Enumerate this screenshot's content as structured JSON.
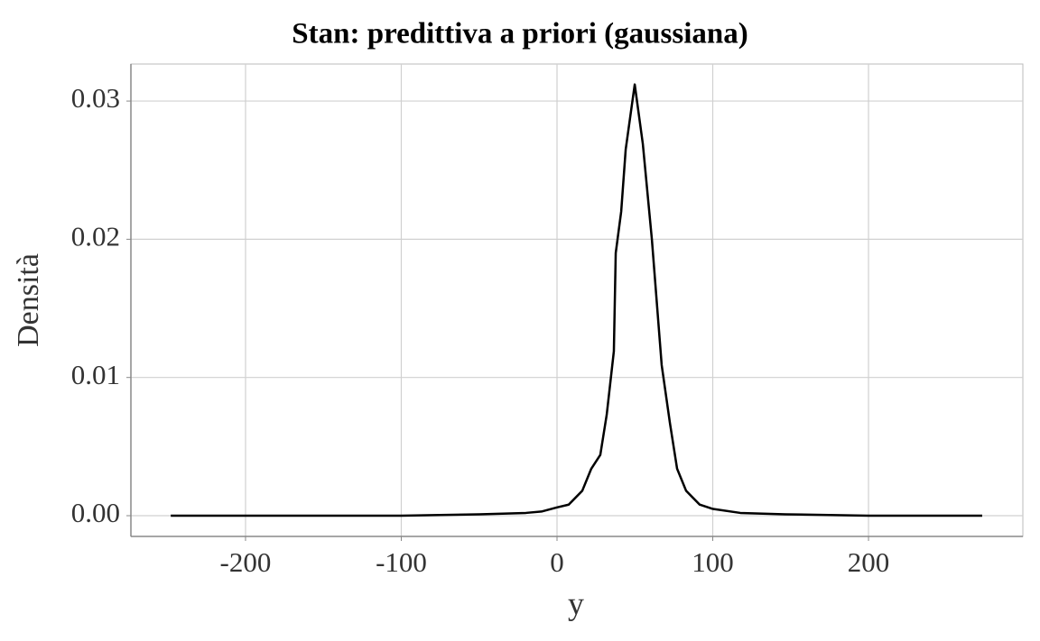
{
  "chart_data": {
    "type": "line",
    "title": "Stan: predittiva a priori (gaussiana)",
    "x_label": "y",
    "y_label": "Densità",
    "x": [
      -248,
      -200,
      -150,
      -100,
      -50,
      -20,
      -10,
      0,
      7.5,
      16.2,
      22,
      27.8,
      31.9,
      36.5,
      37.7,
      41.2,
      44.1,
      49.9,
      55.1,
      60.9,
      67.2,
      72.5,
      77.1,
      82.9,
      91.6,
      99.7,
      117.7,
      146.7,
      200,
      273
    ],
    "series": [
      {
        "name": "y",
        "color": "#000000",
        "values": [
          0,
          0,
          0,
          0,
          0.0001,
          0.0002,
          0.0003,
          0.0006,
          0.0008,
          0.0018,
          0.0034,
          0.0044,
          0.0073,
          0.0119,
          0.019,
          0.022,
          0.0265,
          0.0312,
          0.0269,
          0.02,
          0.0109,
          0.0067,
          0.0034,
          0.0018,
          0.0008,
          0.0005,
          0.0002,
          0.0001,
          0,
          0
        ]
      }
    ],
    "xlim": [
      -273.6,
      299.1
    ],
    "ylim": [
      -0.0015,
      0.03268
    ],
    "xticks": [
      -200,
      -100,
      0,
      100,
      200
    ],
    "yticks": [
      {
        "value": 0,
        "label": "0.00"
      },
      0.01,
      0.02,
      0.03
    ],
    "grid": true
  }
}
